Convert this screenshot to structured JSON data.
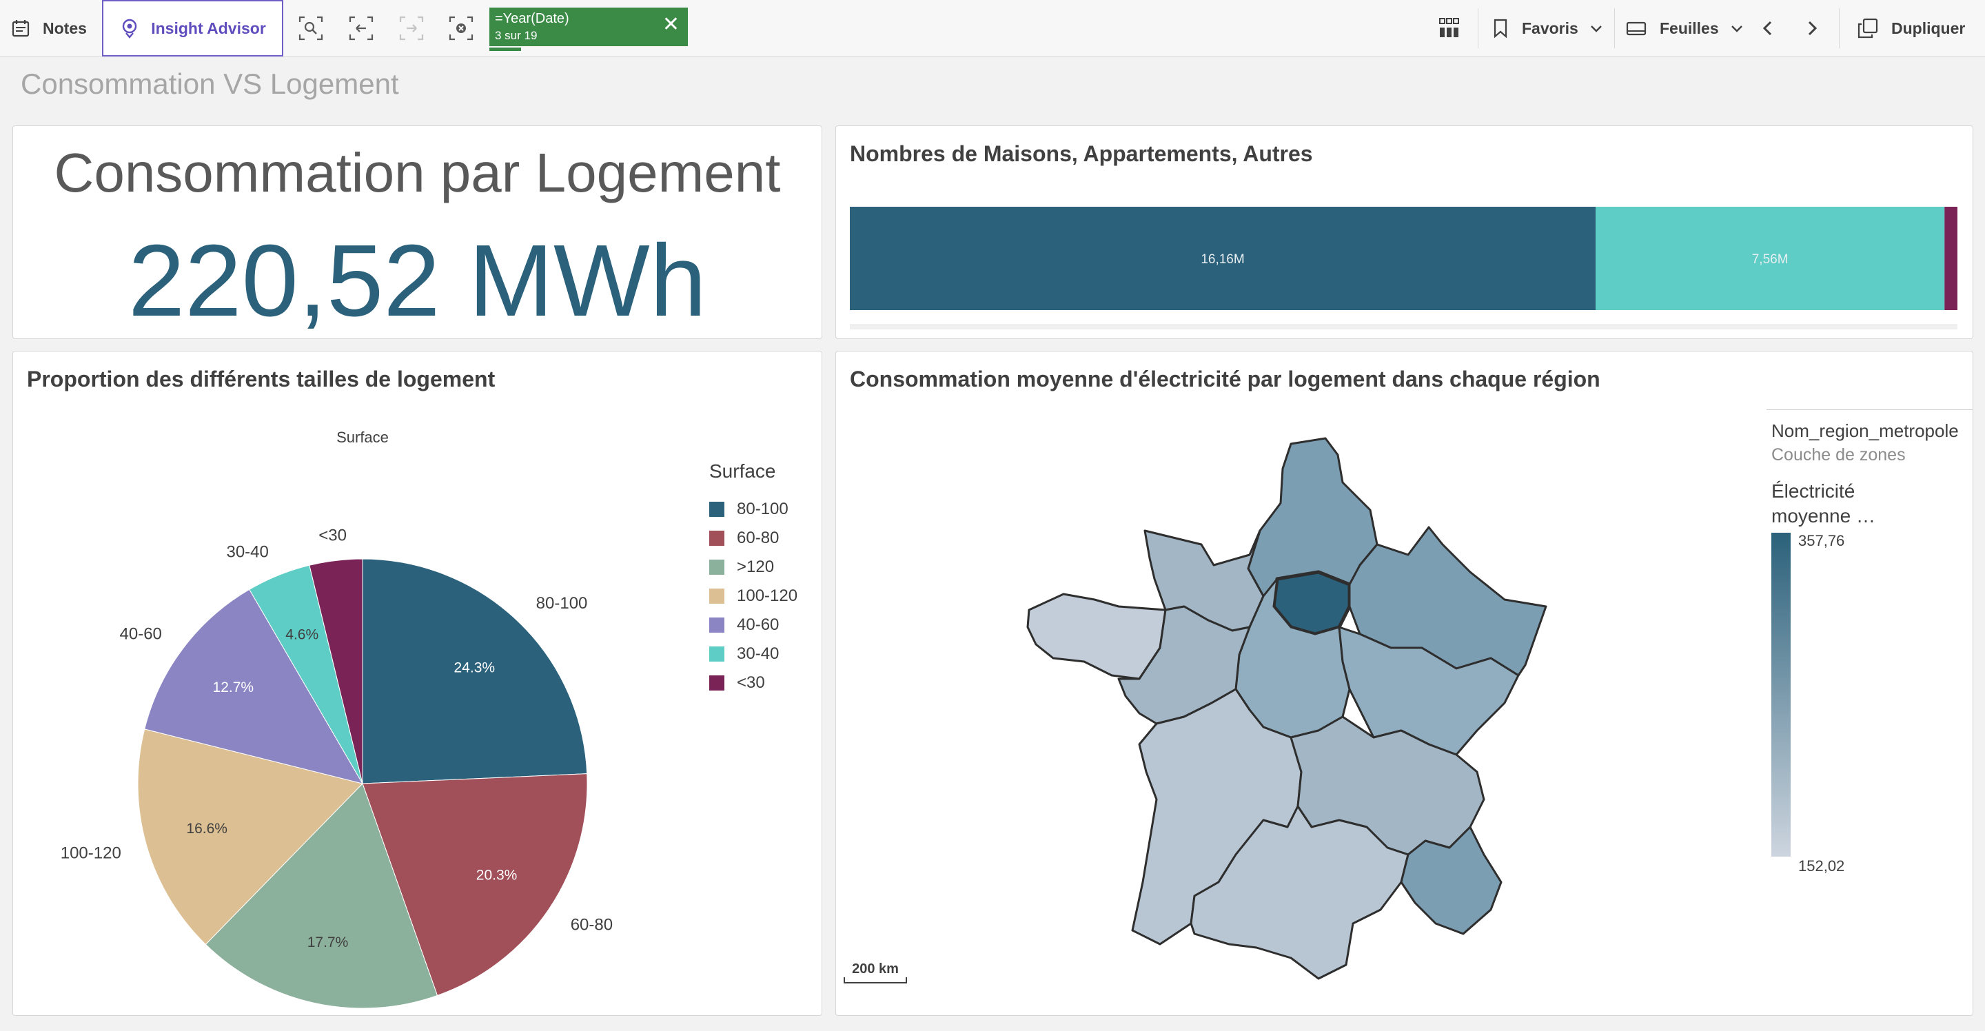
{
  "toolbar": {
    "notes_label": "Notes",
    "insight_label": "Insight Advisor",
    "selection_chip": {
      "field": "=Year(Date)",
      "count": "3 sur 19",
      "close": "✕"
    },
    "favoris_label": "Favoris",
    "feuilles_label": "Feuilles",
    "dupliquer_label": "Dupliquer"
  },
  "sheet": {
    "title": "Consommation VS Logement"
  },
  "kpi": {
    "title": "Consommation par Logement",
    "value": "220,52 MWh"
  },
  "housing_bar": {
    "title": "Nombres de Maisons, Appartements, Autres",
    "chart_data": {
      "type": "bar",
      "orientation": "horizontal-stacked",
      "series": [
        {
          "value": 16.16,
          "label": "16,16M",
          "color": "#2b617b"
        },
        {
          "value": 7.56,
          "label": "7,56M",
          "color": "#5ecdc5"
        },
        {
          "value": 0.28,
          "label": "",
          "color": "#7a2357"
        }
      ]
    }
  },
  "pie": {
    "title": "Proportion des différents tailles de logement",
    "chart_data": {
      "type": "pie",
      "title": "Surface",
      "legend_title": "Surface",
      "legend_position": "right",
      "slices": [
        {
          "label": "80-100",
          "percent": 24.3,
          "pct_label": "24.3%",
          "color": "#2b617b",
          "pct_color": "#ffffff"
        },
        {
          "label": "60-80",
          "percent": 20.3,
          "pct_label": "20.3%",
          "color": "#a14f58",
          "pct_color": "#ffffff"
        },
        {
          "label": ">120",
          "percent": 17.7,
          "pct_label": "17.7%",
          "color": "#8bb09b",
          "pct_color": "#404040"
        },
        {
          "label": "100-120",
          "percent": 16.6,
          "pct_label": "16.6%",
          "color": "#dcbf92",
          "pct_color": "#404040"
        },
        {
          "label": "40-60",
          "percent": 12.7,
          "pct_label": "12.7%",
          "color": "#8b85c4",
          "pct_color": "#ffffff"
        },
        {
          "label": "30-40",
          "percent": 4.6,
          "pct_label": "4.6%",
          "color": "#5ecdc5",
          "pct_color": "#404040"
        },
        {
          "label": "<30",
          "percent": 3.8,
          "pct_label": "",
          "color": "#7a2357",
          "pct_color": "#ffffff"
        }
      ]
    }
  },
  "map": {
    "title": "Consommation moyenne d'électricité par logement dans chaque région",
    "legend": {
      "layer_name": "Nom_region_metropole",
      "layer_sub": "Couche de zones",
      "measure_line1": "Électricité",
      "measure_line2": "moyenne …",
      "max": "357,76",
      "min": "152,02",
      "color_max": "#2b617b",
      "color_min": "#cdd5df"
    },
    "scale_label": "200 km"
  }
}
